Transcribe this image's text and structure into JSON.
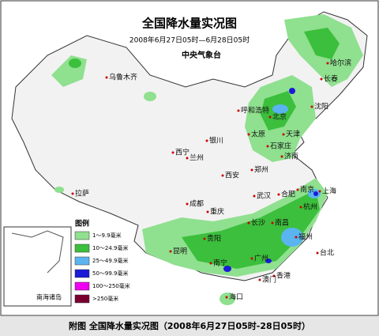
{
  "header": {
    "title": "全国降水量实况图",
    "period": "2008年6月27日05时—6月28日05时",
    "agency": "中央气象台"
  },
  "cities": [
    "乌鲁木齐",
    "哈尔滨",
    "长春",
    "沈阳",
    "呼和浩特",
    "北京",
    "天津",
    "太原",
    "石家庄",
    "济南",
    "西宁",
    "兰州",
    "银川",
    "郑州",
    "西安",
    "拉萨",
    "成都",
    "武汉",
    "合肥",
    "南京",
    "上海",
    "杭州",
    "重庆",
    "长沙",
    "南昌",
    "福州",
    "贵阳",
    "昆明",
    "南宁",
    "广州",
    "台北",
    "香港",
    "澳门",
    "海口"
  ],
  "legend": {
    "title": "图例",
    "items": [
      {
        "label": "1～9.9毫米",
        "color": "#8fe08f"
      },
      {
        "label": "10～24.9毫米",
        "color": "#3cbf3c"
      },
      {
        "label": "25～49.9毫米",
        "color": "#5ab4f0"
      },
      {
        "label": "50～99.9毫米",
        "color": "#1a1ad8"
      },
      {
        "label": "100～250毫米",
        "color": "#f000f0"
      },
      {
        "label": ">250毫米",
        "color": "#7a0030"
      }
    ]
  },
  "inset": {
    "label": "南海诸岛"
  },
  "caption": "附图 全国降水量实况图（2008年6月27日05时-28日05时）"
}
